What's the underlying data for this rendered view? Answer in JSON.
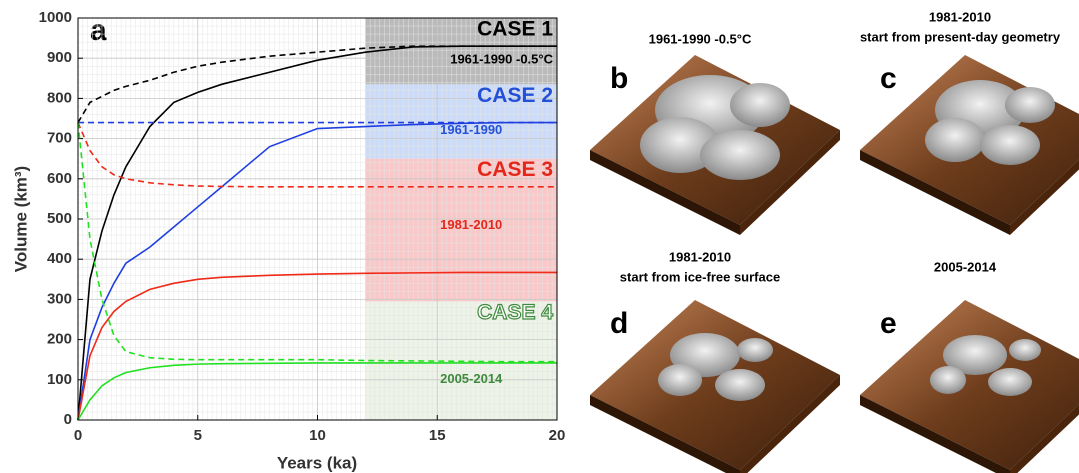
{
  "chart_data": {
    "type": "line",
    "panel_label": "a",
    "xlabel": "Years (ka)",
    "ylabel": "Volume (km³)",
    "x": [
      0,
      0.5,
      1,
      1.5,
      2,
      3,
      4,
      5,
      6,
      8,
      10,
      12,
      14,
      16,
      18,
      20
    ],
    "xlim": [
      0,
      20
    ],
    "xticks": [
      0,
      5,
      10,
      15,
      20
    ],
    "ylim": [
      0,
      1000
    ],
    "yticks": [
      0,
      100,
      200,
      300,
      400,
      500,
      600,
      700,
      800,
      900,
      1000
    ],
    "grid": true,
    "bands": [
      {
        "label": "CASE 1",
        "sublabel": "1961-1990 -0.5°C",
        "fill": "#9c9c9c",
        "label_color": "#000000",
        "x": [
          12,
          20
        ],
        "y": [
          835,
          1000
        ]
      },
      {
        "label": "CASE 2",
        "sublabel": "1961-1990",
        "fill": "#b7ccf3",
        "label_color": "#2450d8",
        "x": [
          12,
          20
        ],
        "y": [
          650,
          835
        ]
      },
      {
        "label": "CASE 3",
        "sublabel": "1981-2010",
        "fill": "#f7b1b1",
        "label_color": "#e2281a",
        "x": [
          12,
          20
        ],
        "y": [
          295,
          650
        ]
      },
      {
        "label": "CASE 4",
        "sublabel": "2005-2014",
        "fill": "#e6eedc",
        "label_color": "#3f8a3f",
        "x": [
          12,
          20
        ],
        "y": [
          0,
          295
        ]
      }
    ],
    "series": [
      {
        "color": "#000000",
        "dashed": false,
        "values": [
          0,
          350,
          470,
          560,
          630,
          730,
          790,
          815,
          835,
          865,
          895,
          915,
          928,
          930,
          930,
          930
        ]
      },
      {
        "color": "#000000",
        "dashed": true,
        "values": [
          740,
          790,
          805,
          820,
          830,
          845,
          865,
          880,
          890,
          905,
          915,
          925,
          930,
          930,
          930,
          930
        ]
      },
      {
        "color": "#1f3fe0",
        "dashed": false,
        "values": [
          0,
          200,
          280,
          340,
          390,
          430,
          480,
          530,
          580,
          680,
          725,
          730,
          735,
          738,
          740,
          740
        ]
      },
      {
        "color": "#1f3fe0",
        "dashed": true,
        "values": [
          740,
          740,
          740,
          740,
          740,
          740,
          740,
          740,
          740,
          740,
          740,
          740,
          740,
          740,
          740,
          740
        ]
      },
      {
        "color": "#f02a18",
        "dashed": false,
        "values": [
          0,
          160,
          230,
          270,
          295,
          325,
          340,
          350,
          355,
          360,
          363,
          365,
          366,
          367,
          367,
          367
        ]
      },
      {
        "color": "#f02a18",
        "dashed": true,
        "values": [
          740,
          670,
          630,
          610,
          600,
          590,
          585,
          582,
          581,
          580,
          580,
          580,
          580,
          580,
          580,
          580
        ]
      },
      {
        "color": "#22e022",
        "dashed": false,
        "values": [
          0,
          50,
          85,
          105,
          118,
          130,
          136,
          139,
          140,
          141,
          142,
          142,
          142,
          142,
          142,
          142
        ]
      },
      {
        "color": "#22e022",
        "dashed": true,
        "values": [
          740,
          450,
          300,
          210,
          170,
          155,
          151,
          150,
          150,
          150,
          150,
          148,
          147,
          146,
          145,
          145
        ]
      }
    ]
  },
  "panels": [
    {
      "letter": "b",
      "title": [
        "1961-1990 -0.5°C"
      ]
    },
    {
      "letter": "c",
      "title": [
        "1981-2010",
        "start from present-day geometry"
      ]
    },
    {
      "letter": "d",
      "title": [
        "1981-2010",
        "start from ice-free surface"
      ]
    },
    {
      "letter": "e",
      "title": [
        "2005-2014"
      ]
    }
  ]
}
